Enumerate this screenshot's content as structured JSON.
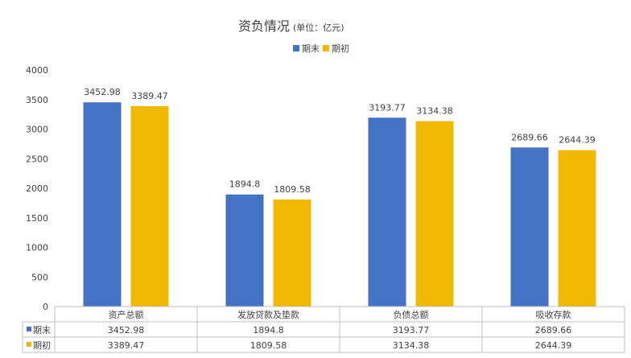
{
  "chart_data": {
    "type": "bar",
    "title": "资负情况",
    "subtitle": "(单位：亿元)",
    "categories": [
      "资产总额",
      "发放贷款及垫款",
      "负债总额",
      "吸收存款"
    ],
    "series": [
      {
        "name": "期末",
        "color": "#4472C4",
        "values": [
          3452.98,
          1894.8,
          3193.77,
          2689.66
        ],
        "labels": [
          "3452.98",
          "1894.8",
          "3193.77",
          "2689.66"
        ]
      },
      {
        "name": "期初",
        "color": "#F0B800",
        "values": [
          3389.47,
          1809.58,
          3134.38,
          2644.39
        ],
        "labels": [
          "3389.47",
          "1809.58",
          "3134.38",
          "2644.39"
        ]
      }
    ],
    "ylim": [
      0,
      4000
    ],
    "yticks": [
      0,
      500,
      1000,
      1500,
      2000,
      2500,
      3000,
      3500,
      4000
    ],
    "grid": false,
    "legend": "top-center",
    "data_table": true
  }
}
